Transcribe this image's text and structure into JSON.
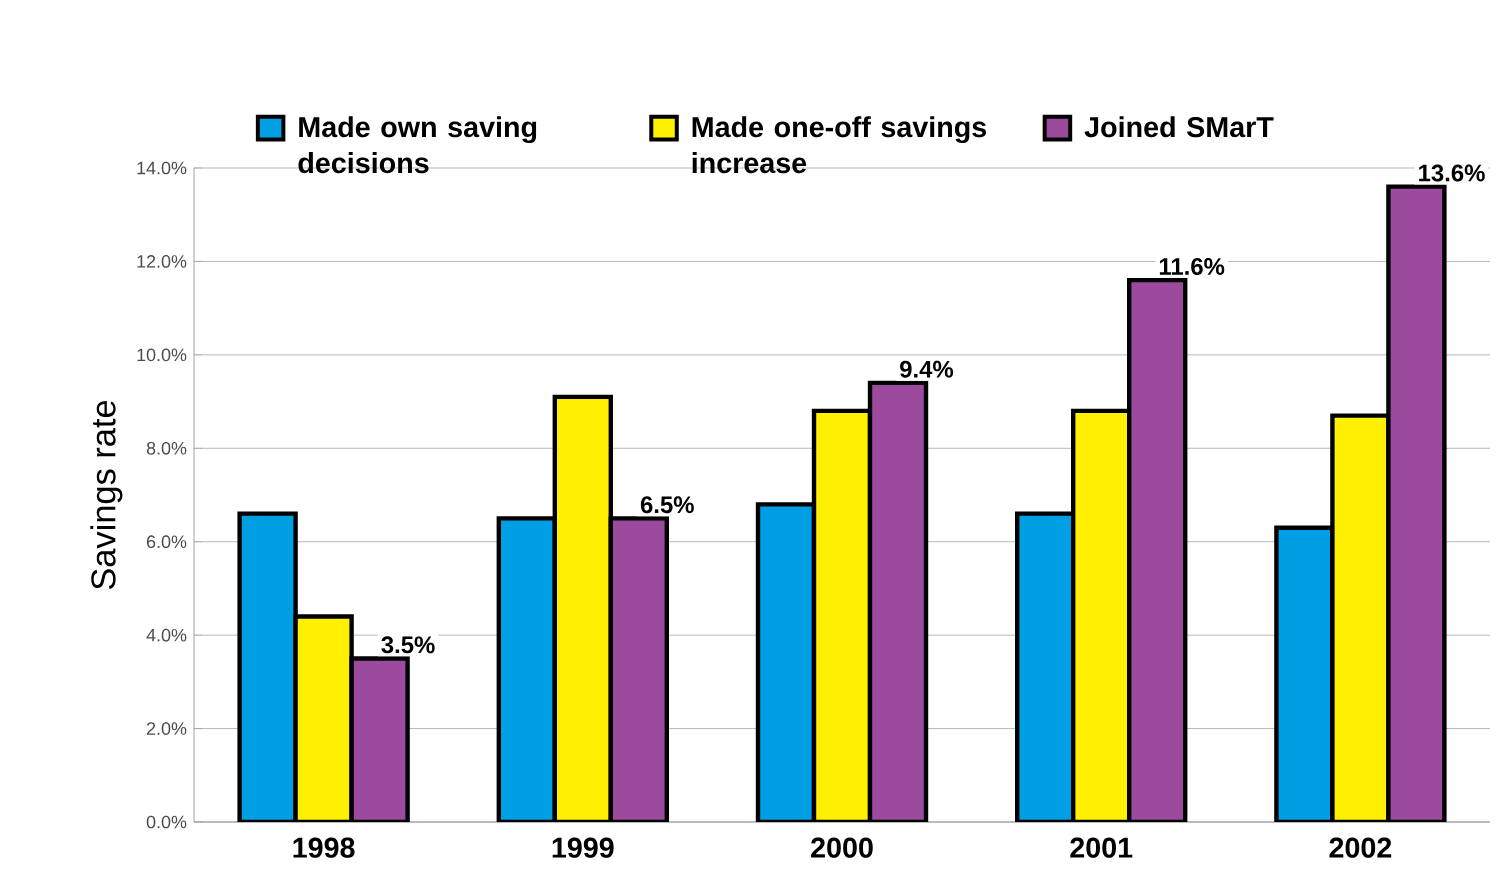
{
  "chart_data": {
    "type": "bar",
    "ylabel": "Savings rate",
    "categories": [
      "1998",
      "1999",
      "2000",
      "2001",
      "2002"
    ],
    "series": [
      {
        "name": "Made own saving decisions",
        "color": "#009fe3",
        "values": [
          6.6,
          6.5,
          6.8,
          6.6,
          6.3
        ]
      },
      {
        "name": "Made one-off savings increase",
        "color": "#ffef00",
        "values": [
          4.4,
          9.1,
          8.8,
          8.8,
          8.7
        ]
      },
      {
        "name": "Joined SMarT",
        "color": "#9c4a9e",
        "values": [
          3.5,
          6.5,
          9.4,
          11.6,
          13.6
        ],
        "value_labels": [
          "3.5%",
          "6.5%",
          "9.4%",
          "11.6%",
          "13.6%"
        ]
      }
    ],
    "ylim": [
      0,
      14
    ],
    "yticks": [
      {
        "value": 0,
        "label": "0.0%"
      },
      {
        "value": 2,
        "label": "2.0%"
      },
      {
        "value": 4,
        "label": "4.0%"
      },
      {
        "value": 6,
        "label": "6.0%"
      },
      {
        "value": 8,
        "label": "8.0%"
      },
      {
        "value": 10,
        "label": "10.0%"
      },
      {
        "value": 12,
        "label": "12.0%"
      },
      {
        "value": 14,
        "label": "14.0%"
      }
    ],
    "grid": "y",
    "legend": "top"
  }
}
